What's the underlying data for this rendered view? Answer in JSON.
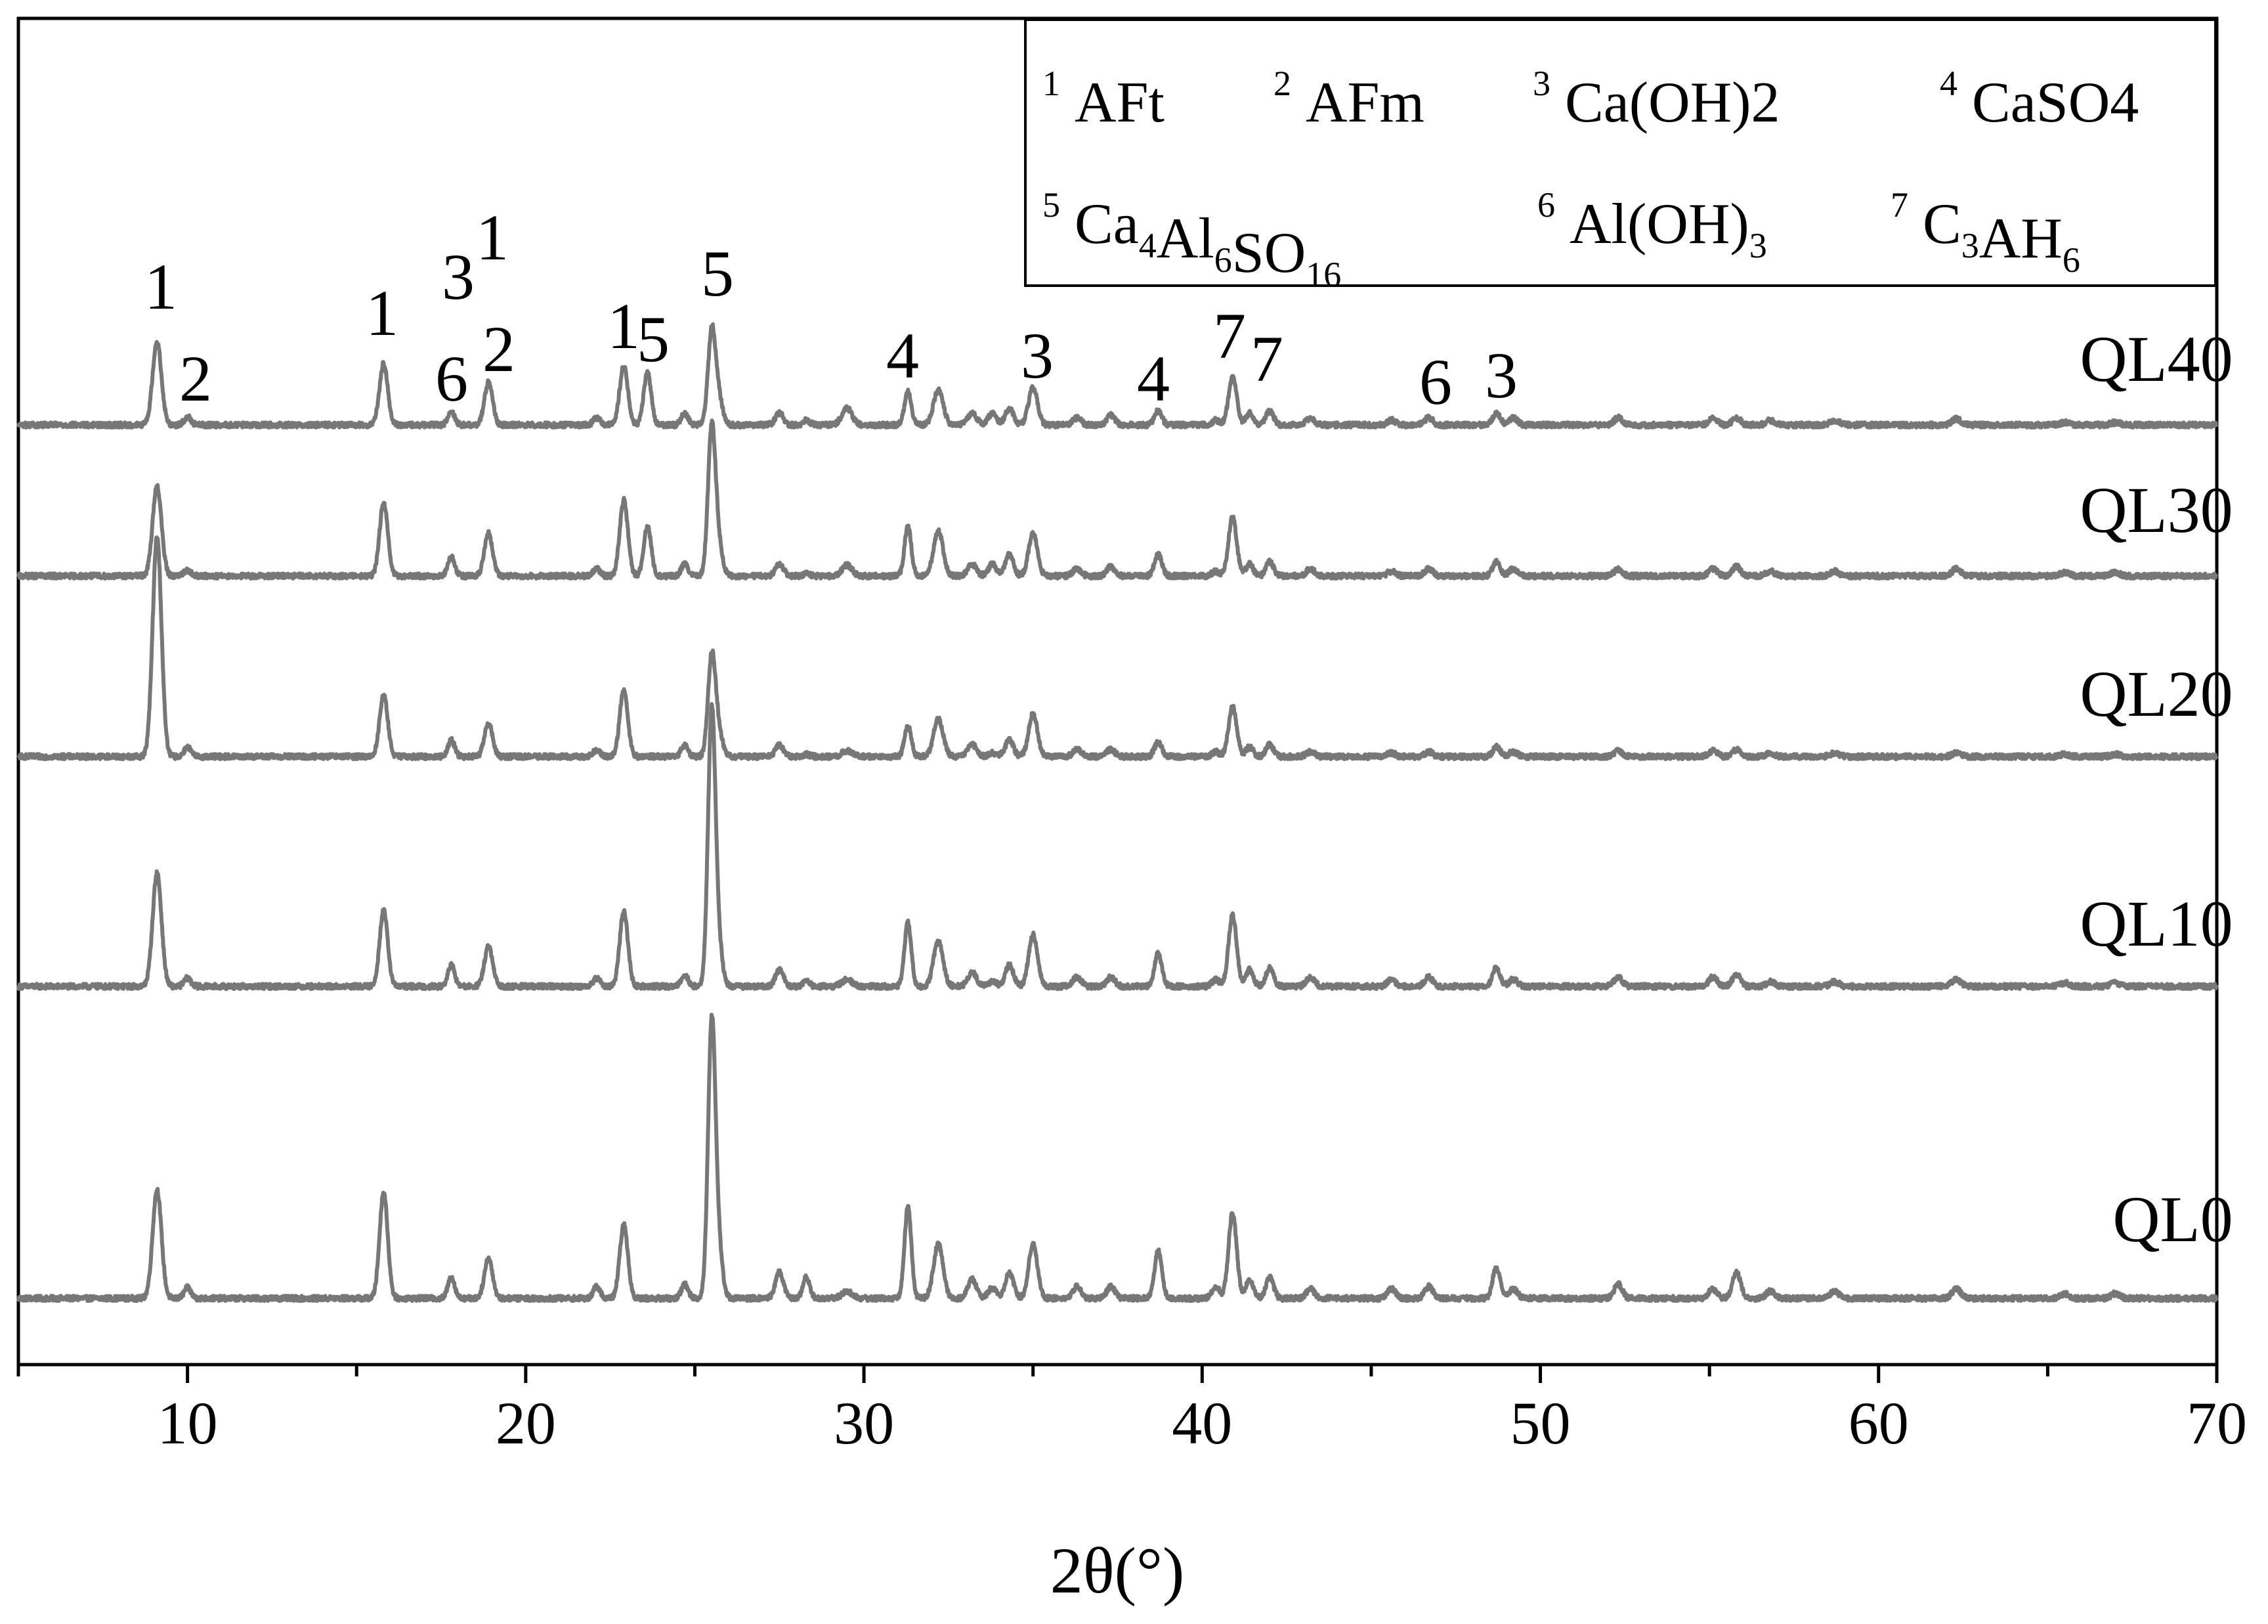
{
  "chart_data": {
    "type": "line",
    "title": "",
    "xlabel": "2θ(°)",
    "ylabel": "",
    "xlim": [
      5,
      70
    ],
    "xticks": [
      10,
      20,
      30,
      40,
      50,
      60,
      70
    ],
    "grid": false,
    "line_color": "#777777",
    "legend_position": "top-right",
    "legend": {
      "row1": [
        {
          "num": "1",
          "parts": [
            {
              "t": "AFt",
              "s": "n"
            }
          ]
        },
        {
          "num": "2",
          "parts": [
            {
              "t": "AFm",
              "s": "n"
            }
          ]
        },
        {
          "num": "3",
          "parts": [
            {
              "t": "Ca(OH)2",
              "s": "n"
            }
          ]
        },
        {
          "num": "4",
          "parts": [
            {
              "t": "CaSO4",
              "s": "n"
            }
          ]
        }
      ],
      "row2": [
        {
          "num": "5",
          "parts": [
            {
              "t": "Ca",
              "s": "n"
            },
            {
              "t": "4",
              "s": "sub"
            },
            {
              "t": "Al",
              "s": "n"
            },
            {
              "t": "6",
              "s": "sub"
            },
            {
              "t": "SO",
              "s": "n"
            },
            {
              "t": "16",
              "s": "sub"
            }
          ]
        },
        {
          "num": "6",
          "parts": [
            {
              "t": "Al(OH)",
              "s": "n"
            },
            {
              "t": "3",
              "s": "sub"
            }
          ]
        },
        {
          "num": "7",
          "parts": [
            {
              "t": "C",
              "s": "n"
            },
            {
              "t": "3",
              "s": "sub"
            },
            {
              "t": "AH",
              "s": "n"
            },
            {
              "t": "6",
              "s": "sub"
            }
          ]
        }
      ]
    },
    "peaks": [
      {
        "x": 9.1,
        "w": 0.13
      },
      {
        "x": 10.0,
        "w": 0.1
      },
      {
        "x": 15.8,
        "w": 0.12
      },
      {
        "x": 17.8,
        "w": 0.1
      },
      {
        "x": 18.9,
        "w": 0.12
      },
      {
        "x": 22.1,
        "w": 0.1
      },
      {
        "x": 22.9,
        "w": 0.12
      },
      {
        "x": 23.6,
        "w": 0.11
      },
      {
        "x": 24.7,
        "w": 0.1
      },
      {
        "x": 25.5,
        "w": 0.11
      },
      {
        "x": 25.7,
        "w": 0.12
      },
      {
        "x": 27.5,
        "w": 0.12
      },
      {
        "x": 28.3,
        "w": 0.1
      },
      {
        "x": 29.5,
        "w": 0.15
      },
      {
        "x": 31.3,
        "w": 0.1
      },
      {
        "x": 32.2,
        "w": 0.14
      },
      {
        "x": 33.2,
        "w": 0.13
      },
      {
        "x": 33.8,
        "w": 0.12
      },
      {
        "x": 34.3,
        "w": 0.12
      },
      {
        "x": 35.0,
        "w": 0.13
      },
      {
        "x": 36.3,
        "w": 0.12
      },
      {
        "x": 37.3,
        "w": 0.12
      },
      {
        "x": 38.7,
        "w": 0.11
      },
      {
        "x": 40.4,
        "w": 0.11
      },
      {
        "x": 40.9,
        "w": 0.12
      },
      {
        "x": 41.4,
        "w": 0.11
      },
      {
        "x": 42.0,
        "w": 0.11
      },
      {
        "x": 43.2,
        "w": 0.12
      },
      {
        "x": 45.6,
        "w": 0.12
      },
      {
        "x": 46.7,
        "w": 0.12
      },
      {
        "x": 48.7,
        "w": 0.11
      },
      {
        "x": 49.2,
        "w": 0.12
      },
      {
        "x": 52.3,
        "w": 0.12
      },
      {
        "x": 55.1,
        "w": 0.12
      },
      {
        "x": 55.8,
        "w": 0.12
      },
      {
        "x": 56.8,
        "w": 0.12
      },
      {
        "x": 58.7,
        "w": 0.13
      },
      {
        "x": 62.3,
        "w": 0.13
      },
      {
        "x": 65.5,
        "w": 0.13
      },
      {
        "x": 67.0,
        "w": 0.13
      }
    ],
    "series": [
      {
        "name": "QL0",
        "baseline": 0.08,
        "intensities": [
          4.6,
          0.45,
          4.5,
          0.9,
          1.7,
          0.5,
          3.1,
          0.0,
          0.6,
          11.5,
          1.9,
          1.1,
          0.9,
          0.3,
          3.9,
          2.3,
          0.8,
          0.45,
          1.1,
          2.3,
          0.5,
          0.5,
          2.0,
          0.5,
          3.6,
          0.8,
          0.9,
          0.4,
          0.4,
          0.5,
          1.3,
          0.4,
          0.6,
          0.4,
          1.1,
          0.3,
          0.3,
          0.4,
          0.2,
          0.2
        ]
      },
      {
        "name": "QL10",
        "baseline": 0.08,
        "intensities": [
          4.8,
          0.35,
          3.2,
          0.9,
          1.7,
          0.35,
          3.2,
          0.0,
          0.5,
          11.5,
          1.5,
          0.7,
          0.2,
          0.3,
          2.7,
          1.9,
          0.6,
          0.2,
          0.9,
          2.2,
          0.4,
          0.4,
          1.4,
          0.3,
          3.0,
          0.7,
          0.8,
          0.4,
          0.3,
          0.4,
          0.8,
          0.3,
          0.4,
          0.4,
          0.5,
          0.2,
          0.2,
          0.3,
          0.15,
          0.15
        ]
      },
      {
        "name": "QL20",
        "baseline": 0.08,
        "intensities": [
          9.3,
          0.4,
          2.6,
          0.7,
          1.4,
          0.3,
          2.8,
          0.0,
          0.5,
          4.2,
          1.0,
          0.5,
          0.1,
          0.25,
          1.3,
          1.6,
          0.5,
          0.15,
          0.7,
          1.8,
          0.3,
          0.3,
          0.6,
          0.2,
          2.1,
          0.4,
          0.5,
          0.2,
          0.15,
          0.2,
          0.4,
          0.2,
          0.25,
          0.25,
          0.3,
          0.15,
          0.15,
          0.15,
          0.1,
          0.1
        ]
      },
      {
        "name": "QL30",
        "baseline": 0.08,
        "intensities": [
          3.8,
          0.25,
          3.1,
          0.8,
          1.8,
          0.3,
          3.2,
          2.1,
          0.5,
          6.2,
          1.2,
          0.5,
          0.1,
          0.45,
          2.1,
          1.9,
          0.5,
          0.5,
          0.9,
          1.8,
          0.3,
          0.4,
          0.9,
          0.2,
          2.5,
          0.5,
          0.6,
          0.3,
          0.2,
          0.3,
          0.6,
          0.3,
          0.3,
          0.3,
          0.4,
          0.2,
          0.2,
          0.3,
          0.15,
          0.15
        ]
      },
      {
        "name": "QL40",
        "baseline": 0.08,
        "intensities": [
          3.5,
          0.35,
          2.6,
          0.55,
          1.8,
          0.3,
          2.5,
          2.2,
          0.5,
          3.9,
          1.1,
          0.5,
          0.2,
          0.7,
          1.4,
          1.5,
          0.5,
          0.5,
          0.7,
          1.6,
          0.3,
          0.4,
          0.6,
          0.2,
          2.0,
          0.5,
          0.6,
          0.3,
          0.2,
          0.3,
          0.5,
          0.3,
          0.3,
          0.3,
          0.3,
          0.2,
          0.2,
          0.25,
          0.1,
          0.1
        ]
      }
    ],
    "peak_labels": [
      {
        "text": "1",
        "x": 9.1
      },
      {
        "text": "2",
        "x": 10.1
      },
      {
        "text": "1",
        "x": 15.8
      },
      {
        "text": "6",
        "x": 17.8
      },
      {
        "text": "3",
        "x": 17.9
      },
      {
        "text": "1",
        "x": 19.0
      },
      {
        "text": "2",
        "x": 19.0
      },
      {
        "text": "1",
        "x": 22.9
      },
      {
        "text": "5",
        "x": 23.7
      },
      {
        "text": "5",
        "x": 25.7
      },
      {
        "text": "4",
        "x": 31.4
      },
      {
        "text": "3",
        "x": 35.1
      },
      {
        "text": "4",
        "x": 38.8
      },
      {
        "text": "7",
        "x": 40.8
      },
      {
        "text": "7",
        "x": 41.9
      },
      {
        "text": "6",
        "x": 46.8
      },
      {
        "text": "3",
        "x": 48.8
      }
    ]
  }
}
